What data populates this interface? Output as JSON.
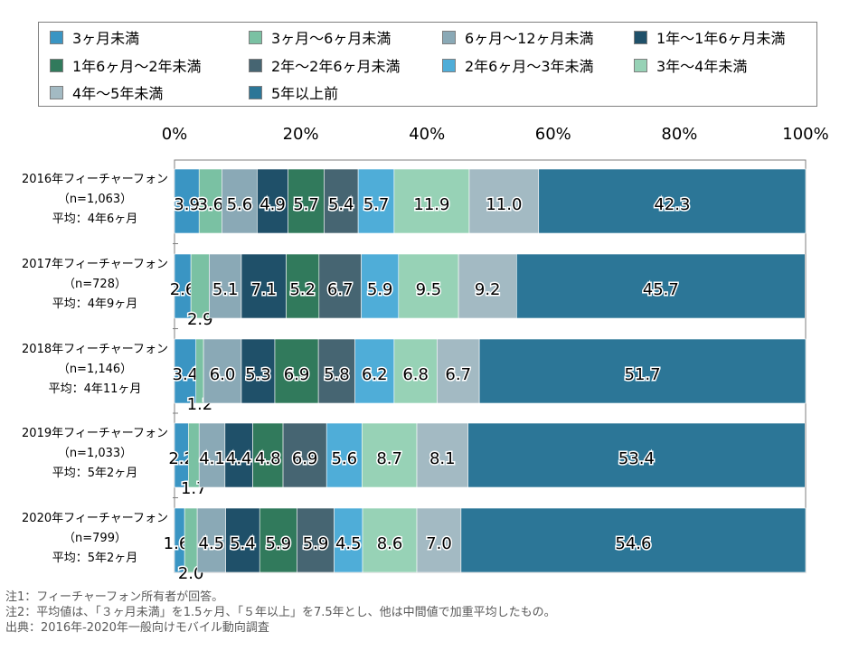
{
  "chart_data": {
    "type": "bar",
    "orientation": "horizontal-stacked-100",
    "x_ticks": [
      "0%",
      "20%",
      "40%",
      "60%",
      "80%",
      "100%"
    ],
    "xlim": [
      0,
      100
    ],
    "legend_position": "top",
    "series": [
      {
        "name": "3ヶ月未満",
        "color": "#3a95c3",
        "values": [
          3.9,
          2.6,
          3.4,
          2.2,
          1.6
        ]
      },
      {
        "name": "3ヶ月～6ヶ月未満",
        "color": "#7ac1a3",
        "values": [
          3.6,
          2.9,
          1.2,
          1.7,
          2.0
        ]
      },
      {
        "name": "6ヶ月～12ヶ月未満",
        "color": "#8aa9b6",
        "values": [
          5.6,
          5.1,
          6.0,
          4.1,
          4.5
        ]
      },
      {
        "name": "1年～1年6ヶ月未満",
        "color": "#1f5069",
        "values": [
          4.9,
          7.1,
          5.3,
          4.4,
          5.4
        ]
      },
      {
        "name": "1年6ヶ月～2年未満",
        "color": "#317a5c",
        "values": [
          5.7,
          5.2,
          6.9,
          4.8,
          5.9
        ]
      },
      {
        "name": "2年～2年6ヶ月未満",
        "color": "#466572",
        "values": [
          5.4,
          6.7,
          5.8,
          6.9,
          5.9
        ]
      },
      {
        "name": "2年6ヶ月～3年未満",
        "color": "#4fadd8",
        "values": [
          5.7,
          5.9,
          6.2,
          5.6,
          4.5
        ]
      },
      {
        "name": "3年～4年未満",
        "color": "#97d2b6",
        "values": [
          11.9,
          9.5,
          6.8,
          8.7,
          8.6
        ]
      },
      {
        "name": "4年～5年未満",
        "color": "#a3bac3",
        "values": [
          11.0,
          9.2,
          6.7,
          8.1,
          7.0
        ]
      },
      {
        "name": "5年以上前",
        "color": "#2c7697",
        "values": [
          42.3,
          45.7,
          51.7,
          53.4,
          54.6
        ]
      }
    ],
    "categories": [
      {
        "line1": "2016年フィーチャーフォン",
        "line2": "（n=1,063）",
        "line3": "平均：4年6ヶ月"
      },
      {
        "line1": "2017年フィーチャーフォン",
        "line2": "（n=728）",
        "line3": "平均：4年9ヶ月"
      },
      {
        "line1": "2018年フィーチャーフォン",
        "line2": "（n=1,146）",
        "line3": "平均：4年11ヶ月"
      },
      {
        "line1": "2019年フィーチャーフォン",
        "line2": "（n=1,033）",
        "line3": "平均：5年2ヶ月"
      },
      {
        "line1": "2020年フィーチャーフォン",
        "line2": "（n=799）",
        "line3": "平均：5年2ヶ月"
      }
    ]
  },
  "notes": [
    "注1：フィーチャーフォン所有者が回答。",
    "注2：平均値は、「３ヶ月未満」を1.5ヶ月、「５年以上」を7.5年とし、他は中間値で加重平均したもの。",
    "出典：2016年-2020年一般向けモバイル動向調査"
  ]
}
